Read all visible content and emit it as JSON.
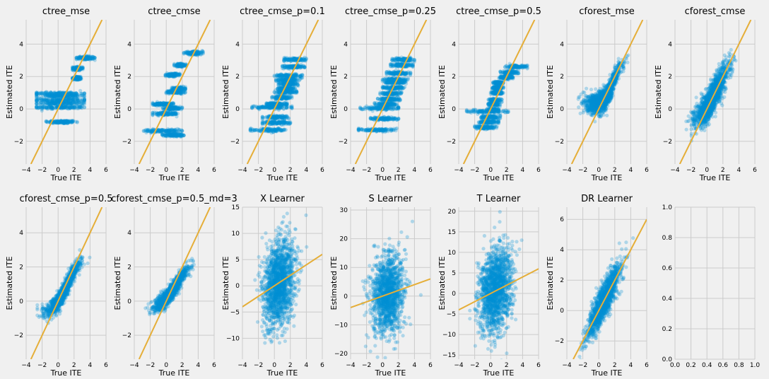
{
  "chart_data": [
    {
      "type": "scatter",
      "title": "ctree_mse",
      "xlabel": "True ITE",
      "ylabel": "Estimated ITE",
      "xlim": [
        -4,
        6
      ],
      "ylim": [
        -3.4,
        5.5
      ],
      "xticks": [
        -4,
        -2,
        0,
        2,
        4,
        6
      ],
      "yticks": [
        -2,
        0,
        2,
        4
      ],
      "generator": {
        "kind": "steps",
        "levels": [
          [
            -0.8,
            -1.5,
            2.4
          ],
          [
            0.1,
            -2.7,
            3.3
          ],
          [
            0.35,
            -2.7,
            3.3
          ],
          [
            0.55,
            -2.7,
            3.3
          ],
          [
            0.8,
            -2.7,
            3.3
          ],
          [
            0.95,
            -2.7,
            3.3
          ],
          [
            1.9,
            1.8,
            3.0
          ],
          [
            2.5,
            1.8,
            3.1
          ],
          [
            3.15,
            2.3,
            4.6
          ]
        ],
        "n": 170
      }
    },
    {
      "type": "scatter",
      "title": "ctree_cmse",
      "xlabel": "True ITE",
      "ylabel": "Estimated ITE",
      "xlim": [
        -4,
        6
      ],
      "ylim": [
        -3.4,
        5.5
      ],
      "xticks": [
        -4,
        -2,
        0,
        2,
        4,
        6
      ],
      "yticks": [
        -2,
        0,
        2,
        4
      ],
      "generator": {
        "kind": "steps",
        "levels": [
          [
            -1.35,
            -3.0,
            2.0
          ],
          [
            -1.6,
            -0.5,
            2.2
          ],
          [
            0.3,
            -1.7,
            0.9
          ],
          [
            0.05,
            -0.5,
            2.0
          ],
          [
            1.05,
            0.0,
            2.4
          ],
          [
            1.25,
            0.7,
            2.4
          ],
          [
            2.1,
            -0.1,
            1.7
          ],
          [
            2.7,
            1.0,
            2.5
          ],
          [
            3.45,
            2.2,
            4.6
          ],
          [
            -0.3,
            -1.7,
            1.6
          ]
        ],
        "n": 150
      }
    },
    {
      "type": "scatter",
      "title": "ctree_cmse_p=0.1",
      "xlabel": "True ITE",
      "ylabel": "Estimated ITE",
      "xlim": [
        -4,
        6
      ],
      "ylim": [
        -3.4,
        5.5
      ],
      "xticks": [
        -4,
        -2,
        0,
        2,
        4,
        6
      ],
      "yticks": [
        -2,
        0,
        2,
        4
      ],
      "generator": {
        "kind": "steps",
        "levels": [
          [
            -1.3,
            -3.0,
            1.8
          ],
          [
            -0.85,
            -1.5,
            2.0
          ],
          [
            -0.5,
            -1.5,
            1.8
          ],
          [
            0.1,
            -2.8,
            2.2
          ],
          [
            0.3,
            -1.0,
            1.6
          ],
          [
            0.7,
            -0.3,
            2.2
          ],
          [
            1.05,
            0.0,
            2.8
          ],
          [
            1.25,
            0.4,
            2.6
          ],
          [
            1.55,
            0.5,
            3.0
          ],
          [
            1.8,
            0.2,
            3.2
          ],
          [
            2.05,
            0.0,
            3.5
          ],
          [
            2.6,
            1.0,
            3.8
          ],
          [
            3.05,
            1.2,
            4.0
          ]
        ],
        "n": 140
      }
    },
    {
      "type": "scatter",
      "title": "ctree_cmse_p=0.25",
      "xlabel": "True ITE",
      "ylabel": "Estimated ITE",
      "xlim": [
        -4,
        6
      ],
      "ylim": [
        -3.4,
        5.5
      ],
      "xticks": [
        -4,
        -2,
        0,
        2,
        4,
        6
      ],
      "yticks": [
        -2,
        0,
        2,
        4
      ],
      "generator": {
        "kind": "steps",
        "levels": [
          [
            -1.3,
            -3.0,
            1.8
          ],
          [
            -0.6,
            -1.5,
            2.0
          ],
          [
            0.05,
            -2.8,
            2.0
          ],
          [
            0.3,
            -1.0,
            1.8
          ],
          [
            0.6,
            -0.6,
            2.2
          ],
          [
            0.95,
            -0.3,
            2.4
          ],
          [
            1.3,
            0.0,
            2.8
          ],
          [
            1.65,
            0.3,
            3.0
          ],
          [
            1.8,
            0.0,
            3.2
          ],
          [
            2.2,
            0.5,
            3.5
          ],
          [
            2.7,
            1.0,
            3.8
          ],
          [
            3.05,
            1.2,
            4.0
          ]
        ],
        "n": 140
      }
    },
    {
      "type": "scatter",
      "title": "ctree_cmse_p=0.5",
      "xlabel": "True ITE",
      "ylabel": "Estimated ITE",
      "xlim": [
        -4,
        6
      ],
      "ylim": [
        -3.4,
        5.5
      ],
      "xticks": [
        -4,
        -2,
        0,
        2,
        4,
        6
      ],
      "yticks": [
        -2,
        0,
        2,
        4
      ],
      "generator": {
        "kind": "steps",
        "levels": [
          [
            -1.15,
            -2.0,
            0.8
          ],
          [
            -0.8,
            -1.5,
            1.0
          ],
          [
            -0.5,
            -1.2,
            1.2
          ],
          [
            -0.15,
            -3.0,
            2.2
          ],
          [
            -0.05,
            -0.5,
            1.0
          ],
          [
            0.3,
            -0.3,
            1.2
          ],
          [
            0.55,
            -0.3,
            1.4
          ],
          [
            1.0,
            0.0,
            1.6
          ],
          [
            1.3,
            0.2,
            1.6
          ],
          [
            1.6,
            0.3,
            1.6
          ],
          [
            1.95,
            1.0,
            2.8
          ],
          [
            2.25,
            1.2,
            3.5
          ],
          [
            2.6,
            1.8,
            4.6
          ]
        ],
        "n": 130
      }
    },
    {
      "type": "scatter",
      "title": "cforest_mse",
      "xlabel": "True ITE",
      "ylabel": "Estimated ITE",
      "xlim": [
        -4,
        6
      ],
      "ylim": [
        -3.4,
        5.5
      ],
      "xticks": [
        -4,
        -2,
        0,
        2,
        4,
        6
      ],
      "yticks": [
        -2,
        0,
        2,
        4
      ],
      "generator": {
        "kind": "sigmoid",
        "lo": 0.3,
        "hi": 3.2,
        "mid": 1.9,
        "k": 1.8,
        "noise": 0.3,
        "xmean": 0.6,
        "xsd": 1.0,
        "xmin": -2.6,
        "xmax": 4.8,
        "n": 1700
      }
    },
    {
      "type": "scatter",
      "title": "cforest_cmse",
      "xlabel": "True ITE",
      "ylabel": "Estimated ITE",
      "xlim": [
        -4,
        6
      ],
      "ylim": [
        -3.4,
        5.5
      ],
      "xticks": [
        -4,
        -2,
        0,
        2,
        4,
        6
      ],
      "yticks": [
        -2,
        0,
        2,
        4
      ],
      "generator": {
        "kind": "sigmoid",
        "lo": -0.9,
        "hi": 3.1,
        "mid": 1.1,
        "k": 1.0,
        "noise": 0.45,
        "xmean": 0.6,
        "xsd": 1.0,
        "xmin": -2.6,
        "xmax": 4.8,
        "n": 1700
      }
    },
    {
      "type": "scatter",
      "title": "cforest_cmse_p=0.5",
      "xlabel": "True ITE",
      "ylabel": "Estimated ITE",
      "xlim": [
        -4,
        6
      ],
      "ylim": [
        -3.4,
        5.5
      ],
      "xticks": [
        -4,
        -2,
        0,
        2,
        4,
        6
      ],
      "yticks": [
        -2,
        0,
        2,
        4
      ],
      "generator": {
        "kind": "sigmoid",
        "lo": -0.8,
        "hi": 2.8,
        "mid": 1.2,
        "k": 1.1,
        "noise": 0.25,
        "xmean": 0.6,
        "xsd": 1.0,
        "xmin": -2.6,
        "xmax": 4.8,
        "n": 1500
      }
    },
    {
      "type": "scatter",
      "title": "cforest_cmse_p=0.5_md=3",
      "xlabel": "True ITE",
      "ylabel": "Estimated ITE",
      "xlim": [
        -4,
        6
      ],
      "ylim": [
        -3.4,
        5.5
      ],
      "xticks": [
        -4,
        -2,
        0,
        2,
        4,
        6
      ],
      "yticks": [
        -2,
        0,
        2,
        4
      ],
      "generator": {
        "kind": "sigmoid",
        "lo": -0.6,
        "hi": 2.6,
        "mid": 1.3,
        "k": 0.9,
        "noise": 0.22,
        "xmean": 0.6,
        "xsd": 1.0,
        "xmin": -2.6,
        "xmax": 4.8,
        "n": 1500
      }
    },
    {
      "type": "scatter",
      "title": "X Learner",
      "xlabel": "True ITE",
      "ylabel": "Estimated ITE",
      "xlim": [
        -4,
        6
      ],
      "ylim": [
        -14,
        15
      ],
      "xticks": [
        -4,
        -2,
        0,
        2,
        4,
        6
      ],
      "yticks": [
        -10,
        -5,
        0,
        5,
        10,
        15
      ],
      "generator": {
        "kind": "linear",
        "slope": 1.0,
        "intercept": 0.0,
        "noise": 4.0,
        "xmean": 0.6,
        "xsd": 1.0,
        "xmin": -2.6,
        "xmax": 4.8,
        "n": 1600
      }
    },
    {
      "type": "scatter",
      "title": "S Learner",
      "xlabel": "True ITE",
      "ylabel": "Estimated ITE",
      "xlim": [
        -4,
        6
      ],
      "ylim": [
        -22,
        31
      ],
      "xticks": [
        -4,
        -2,
        0,
        2,
        4,
        6
      ],
      "yticks": [
        -20,
        -10,
        0,
        10,
        20,
        30
      ],
      "generator": {
        "kind": "linear",
        "slope": 1.0,
        "intercept": 0.0,
        "noise": 7.0,
        "xmean": 0.6,
        "xsd": 1.0,
        "xmin": -2.6,
        "xmax": 4.8,
        "n": 1400
      }
    },
    {
      "type": "scatter",
      "title": "T Learner",
      "xlabel": "True ITE",
      "ylabel": "Estimated ITE",
      "xlim": [
        -4,
        6
      ],
      "ylim": [
        -16,
        21
      ],
      "xticks": [
        -4,
        -2,
        0,
        2,
        4,
        6
      ],
      "yticks": [
        -15,
        -10,
        -5,
        0,
        5,
        10,
        15,
        20
      ],
      "generator": {
        "kind": "linear",
        "slope": 1.0,
        "intercept": 0.0,
        "noise": 5.0,
        "xmean": 0.6,
        "xsd": 1.0,
        "xmin": -2.6,
        "xmax": 4.8,
        "n": 1600
      }
    },
    {
      "type": "scatter",
      "title": "DR Learner",
      "xlabel": "True ITE",
      "ylabel": "Estimated ITE",
      "xlim": [
        -4,
        6
      ],
      "ylim": [
        -3.2,
        6.8
      ],
      "xticks": [
        -4,
        -2,
        0,
        2,
        4,
        6
      ],
      "yticks": [
        -2,
        0,
        2,
        4,
        6
      ],
      "generator": {
        "kind": "linear",
        "slope": 1.0,
        "intercept": 0.0,
        "noise": 0.55,
        "xmean": 0.6,
        "xsd": 1.0,
        "xmin": -2.6,
        "xmax": 4.8,
        "n": 1600
      }
    },
    {
      "type": "empty",
      "title": "",
      "xlabel": "",
      "ylabel": "",
      "xlim": [
        0,
        1
      ],
      "ylim": [
        0,
        1
      ],
      "xticks": [
        0.0,
        0.2,
        0.4,
        0.6,
        0.8,
        1.0
      ],
      "yticks": [
        0.0,
        0.2,
        0.4,
        0.6,
        0.8,
        1.0
      ]
    }
  ],
  "colors": {
    "figure_bg": "#f0f0f0",
    "grid": "#cbcbcb",
    "point": "#008fd5",
    "diagonal": "#e5ae38",
    "text": "#000000"
  },
  "reference_line": "y = x"
}
